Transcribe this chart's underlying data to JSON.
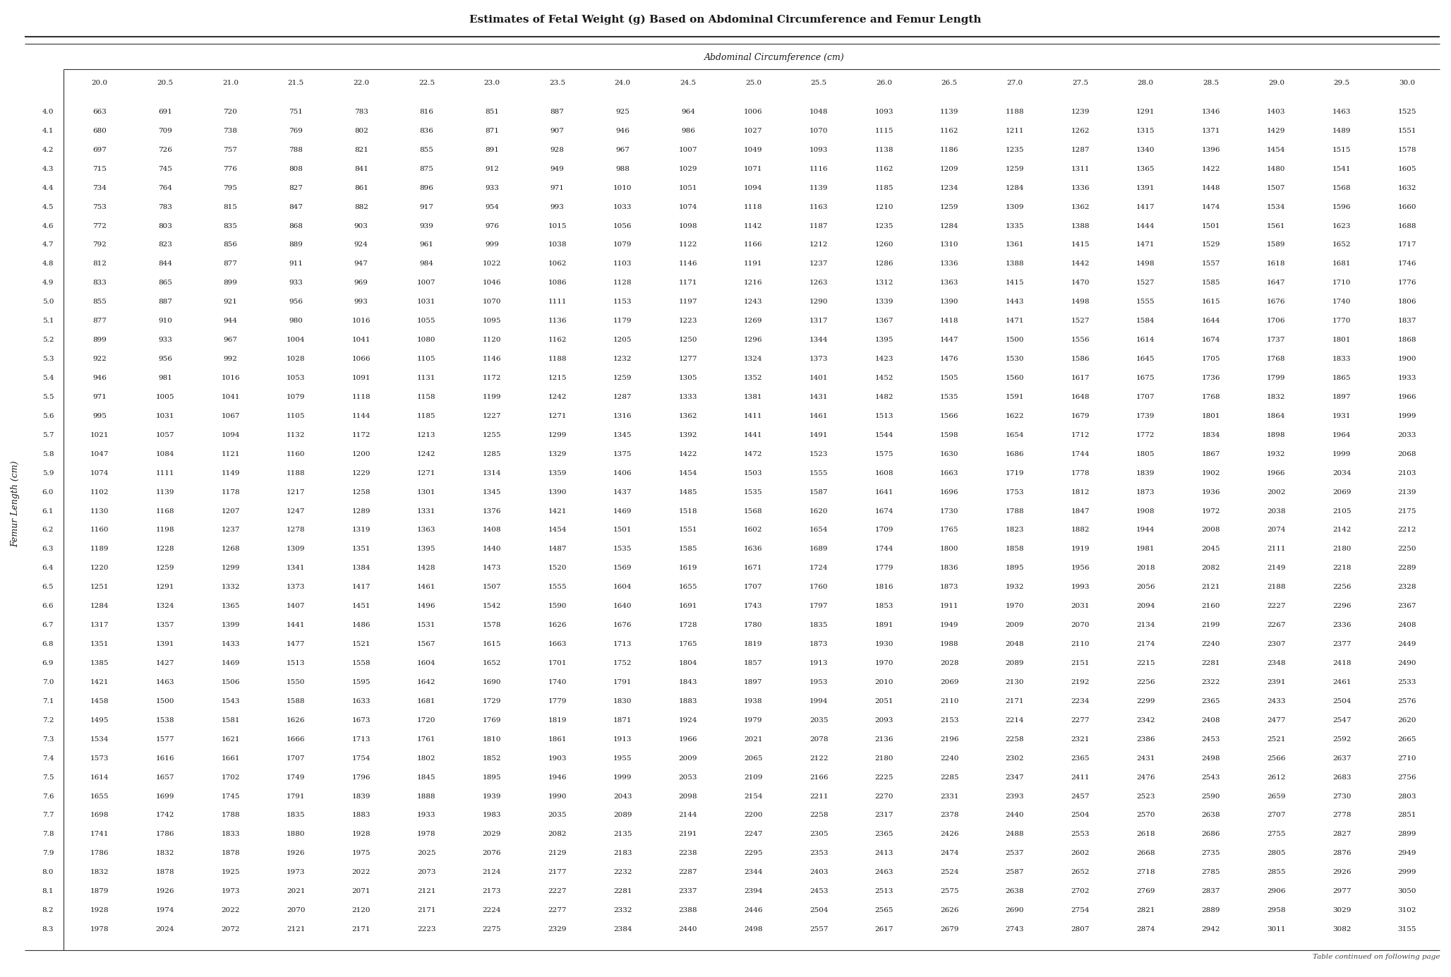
{
  "title": "Estimates of Fetal Weight (g) Based on Abdominal Circumference and Femur Length",
  "col_header_label": "Abdominal Circumference (cm)",
  "row_header_label": "Femur Length (cm)",
  "footer": "Table continued on following page",
  "ac_cols": [
    "20.0",
    "20.5",
    "21.0",
    "21.5",
    "22.0",
    "22.5",
    "23.0",
    "23.5",
    "24.0",
    "24.5",
    "25.0",
    "25.5",
    "26.0",
    "26.5",
    "27.0",
    "27.5",
    "28.0",
    "28.5",
    "29.0",
    "29.5",
    "30.0"
  ],
  "fl_rows": [
    "4.0",
    "4.1",
    "4.2",
    "4.3",
    "4.4",
    "4.5",
    "4.6",
    "4.7",
    "4.8",
    "4.9",
    "5.0",
    "5.1",
    "5.2",
    "5.3",
    "5.4",
    "5.5",
    "5.6",
    "5.7",
    "5.8",
    "5.9",
    "6.0",
    "6.1",
    "6.2",
    "6.3",
    "6.4",
    "6.5",
    "6.6",
    "6.7",
    "6.8",
    "6.9",
    "7.0",
    "7.1",
    "7.2",
    "7.3",
    "7.4",
    "7.5",
    "7.6",
    "7.7",
    "7.8",
    "7.9",
    "8.0",
    "8.1",
    "8.2",
    "8.3"
  ],
  "table_data": [
    [
      663,
      691,
      720,
      751,
      783,
      816,
      851,
      887,
      925,
      964,
      1006,
      1048,
      1093,
      1139,
      1188,
      1239,
      1291,
      1346,
      1403,
      1463,
      1525
    ],
    [
      680,
      709,
      738,
      769,
      802,
      836,
      871,
      907,
      946,
      986,
      1027,
      1070,
      1115,
      1162,
      1211,
      1262,
      1315,
      1371,
      1429,
      1489,
      1551
    ],
    [
      697,
      726,
      757,
      788,
      821,
      855,
      891,
      928,
      967,
      1007,
      1049,
      1093,
      1138,
      1186,
      1235,
      1287,
      1340,
      1396,
      1454,
      1515,
      1578
    ],
    [
      715,
      745,
      776,
      808,
      841,
      875,
      912,
      949,
      988,
      1029,
      1071,
      1116,
      1162,
      1209,
      1259,
      1311,
      1365,
      1422,
      1480,
      1541,
      1605
    ],
    [
      734,
      764,
      795,
      827,
      861,
      896,
      933,
      971,
      1010,
      1051,
      1094,
      1139,
      1185,
      1234,
      1284,
      1336,
      1391,
      1448,
      1507,
      1568,
      1632
    ],
    [
      753,
      783,
      815,
      847,
      882,
      917,
      954,
      993,
      1033,
      1074,
      1118,
      1163,
      1210,
      1259,
      1309,
      1362,
      1417,
      1474,
      1534,
      1596,
      1660
    ],
    [
      772,
      803,
      835,
      868,
      903,
      939,
      976,
      1015,
      1056,
      1098,
      1142,
      1187,
      1235,
      1284,
      1335,
      1388,
      1444,
      1501,
      1561,
      1623,
      1688
    ],
    [
      792,
      823,
      856,
      889,
      924,
      961,
      999,
      1038,
      1079,
      1122,
      1166,
      1212,
      1260,
      1310,
      1361,
      1415,
      1471,
      1529,
      1589,
      1652,
      1717
    ],
    [
      812,
      844,
      877,
      911,
      947,
      984,
      1022,
      1062,
      1103,
      1146,
      1191,
      1237,
      1286,
      1336,
      1388,
      1442,
      1498,
      1557,
      1618,
      1681,
      1746
    ],
    [
      833,
      865,
      899,
      933,
      969,
      1007,
      1046,
      1086,
      1128,
      1171,
      1216,
      1263,
      1312,
      1363,
      1415,
      1470,
      1527,
      1585,
      1647,
      1710,
      1776
    ],
    [
      855,
      887,
      921,
      956,
      993,
      1031,
      1070,
      1111,
      1153,
      1197,
      1243,
      1290,
      1339,
      1390,
      1443,
      1498,
      1555,
      1615,
      1676,
      1740,
      1806
    ],
    [
      877,
      910,
      944,
      980,
      1016,
      1055,
      1095,
      1136,
      1179,
      1223,
      1269,
      1317,
      1367,
      1418,
      1471,
      1527,
      1584,
      1644,
      1706,
      1770,
      1837
    ],
    [
      899,
      933,
      967,
      1004,
      1041,
      1080,
      1120,
      1162,
      1205,
      1250,
      1296,
      1344,
      1395,
      1447,
      1500,
      1556,
      1614,
      1674,
      1737,
      1801,
      1868
    ],
    [
      922,
      956,
      992,
      1028,
      1066,
      1105,
      1146,
      1188,
      1232,
      1277,
      1324,
      1373,
      1423,
      1476,
      1530,
      1586,
      1645,
      1705,
      1768,
      1833,
      1900
    ],
    [
      946,
      981,
      1016,
      1053,
      1091,
      1131,
      1172,
      1215,
      1259,
      1305,
      1352,
      1401,
      1452,
      1505,
      1560,
      1617,
      1675,
      1736,
      1799,
      1865,
      1933
    ],
    [
      971,
      1005,
      1041,
      1079,
      1118,
      1158,
      1199,
      1242,
      1287,
      1333,
      1381,
      1431,
      1482,
      1535,
      1591,
      1648,
      1707,
      1768,
      1832,
      1897,
      1966
    ],
    [
      995,
      1031,
      1067,
      1105,
      1144,
      1185,
      1227,
      1271,
      1316,
      1362,
      1411,
      1461,
      1513,
      1566,
      1622,
      1679,
      1739,
      1801,
      1864,
      1931,
      1999
    ],
    [
      1021,
      1057,
      1094,
      1132,
      1172,
      1213,
      1255,
      1299,
      1345,
      1392,
      1441,
      1491,
      1544,
      1598,
      1654,
      1712,
      1772,
      1834,
      1898,
      1964,
      2033
    ],
    [
      1047,
      1084,
      1121,
      1160,
      1200,
      1242,
      1285,
      1329,
      1375,
      1422,
      1472,
      1523,
      1575,
      1630,
      1686,
      1744,
      1805,
      1867,
      1932,
      1999,
      2068
    ],
    [
      1074,
      1111,
      1149,
      1188,
      1229,
      1271,
      1314,
      1359,
      1406,
      1454,
      1503,
      1555,
      1608,
      1663,
      1719,
      1778,
      1839,
      1902,
      1966,
      2034,
      2103
    ],
    [
      1102,
      1139,
      1178,
      1217,
      1258,
      1301,
      1345,
      1390,
      1437,
      1485,
      1535,
      1587,
      1641,
      1696,
      1753,
      1812,
      1873,
      1936,
      2002,
      2069,
      2139
    ],
    [
      1130,
      1168,
      1207,
      1247,
      1289,
      1331,
      1376,
      1421,
      1469,
      1518,
      1568,
      1620,
      1674,
      1730,
      1788,
      1847,
      1908,
      1972,
      2038,
      2105,
      2175
    ],
    [
      1160,
      1198,
      1237,
      1278,
      1319,
      1363,
      1408,
      1454,
      1501,
      1551,
      1602,
      1654,
      1709,
      1765,
      1823,
      1882,
      1944,
      2008,
      2074,
      2142,
      2212
    ],
    [
      1189,
      1228,
      1268,
      1309,
      1351,
      1395,
      1440,
      1487,
      1535,
      1585,
      1636,
      1689,
      1744,
      1800,
      1858,
      1919,
      1981,
      2045,
      2111,
      2180,
      2250
    ],
    [
      1220,
      1259,
      1299,
      1341,
      1384,
      1428,
      1473,
      1520,
      1569,
      1619,
      1671,
      1724,
      1779,
      1836,
      1895,
      1956,
      2018,
      2082,
      2149,
      2218,
      2289
    ],
    [
      1251,
      1291,
      1332,
      1373,
      1417,
      1461,
      1507,
      1555,
      1604,
      1655,
      1707,
      1760,
      1816,
      1873,
      1932,
      1993,
      2056,
      2121,
      2188,
      2256,
      2328
    ],
    [
      1284,
      1324,
      1365,
      1407,
      1451,
      1496,
      1542,
      1590,
      1640,
      1691,
      1743,
      1797,
      1853,
      1911,
      1970,
      2031,
      2094,
      2160,
      2227,
      2296,
      2367
    ],
    [
      1317,
      1357,
      1399,
      1441,
      1486,
      1531,
      1578,
      1626,
      1676,
      1728,
      1780,
      1835,
      1891,
      1949,
      2009,
      2070,
      2134,
      2199,
      2267,
      2336,
      2408
    ],
    [
      1351,
      1391,
      1433,
      1477,
      1521,
      1567,
      1615,
      1663,
      1713,
      1765,
      1819,
      1873,
      1930,
      1988,
      2048,
      2110,
      2174,
      2240,
      2307,
      2377,
      2449
    ],
    [
      1385,
      1427,
      1469,
      1513,
      1558,
      1604,
      1652,
      1701,
      1752,
      1804,
      1857,
      1913,
      1970,
      2028,
      2089,
      2151,
      2215,
      2281,
      2348,
      2418,
      2490
    ],
    [
      1421,
      1463,
      1506,
      1550,
      1595,
      1642,
      1690,
      1740,
      1791,
      1843,
      1897,
      1953,
      2010,
      2069,
      2130,
      2192,
      2256,
      2322,
      2391,
      2461,
      2533
    ],
    [
      1458,
      1500,
      1543,
      1588,
      1633,
      1681,
      1729,
      1779,
      1830,
      1883,
      1938,
      1994,
      2051,
      2110,
      2171,
      2234,
      2299,
      2365,
      2433,
      2504,
      2576
    ],
    [
      1495,
      1538,
      1581,
      1626,
      1673,
      1720,
      1769,
      1819,
      1871,
      1924,
      1979,
      2035,
      2093,
      2153,
      2214,
      2277,
      2342,
      2408,
      2477,
      2547,
      2620
    ],
    [
      1534,
      1577,
      1621,
      1666,
      1713,
      1761,
      1810,
      1861,
      1913,
      1966,
      2021,
      2078,
      2136,
      2196,
      2258,
      2321,
      2386,
      2453,
      2521,
      2592,
      2665
    ],
    [
      1573,
      1616,
      1661,
      1707,
      1754,
      1802,
      1852,
      1903,
      1955,
      2009,
      2065,
      2122,
      2180,
      2240,
      2302,
      2365,
      2431,
      2498,
      2566,
      2637,
      2710
    ],
    [
      1614,
      1657,
      1702,
      1749,
      1796,
      1845,
      1895,
      1946,
      1999,
      2053,
      2109,
      2166,
      2225,
      2285,
      2347,
      2411,
      2476,
      2543,
      2612,
      2683,
      2756
    ],
    [
      1655,
      1699,
      1745,
      1791,
      1839,
      1888,
      1939,
      1990,
      2043,
      2098,
      2154,
      2211,
      2270,
      2331,
      2393,
      2457,
      2523,
      2590,
      2659,
      2730,
      2803
    ],
    [
      1698,
      1742,
      1788,
      1835,
      1883,
      1933,
      1983,
      2035,
      2089,
      2144,
      2200,
      2258,
      2317,
      2378,
      2440,
      2504,
      2570,
      2638,
      2707,
      2778,
      2851
    ],
    [
      1741,
      1786,
      1833,
      1880,
      1928,
      1978,
      2029,
      2082,
      2135,
      2191,
      2247,
      2305,
      2365,
      2426,
      2488,
      2553,
      2618,
      2686,
      2755,
      2827,
      2899
    ],
    [
      1786,
      1832,
      1878,
      1926,
      1975,
      2025,
      2076,
      2129,
      2183,
      2238,
      2295,
      2353,
      2413,
      2474,
      2537,
      2602,
      2668,
      2735,
      2805,
      2876,
      2949
    ],
    [
      1832,
      1878,
      1925,
      1973,
      2022,
      2073,
      2124,
      2177,
      2232,
      2287,
      2344,
      2403,
      2463,
      2524,
      2587,
      2652,
      2718,
      2785,
      2855,
      2926,
      2999
    ],
    [
      1879,
      1926,
      1973,
      2021,
      2071,
      2121,
      2173,
      2227,
      2281,
      2337,
      2394,
      2453,
      2513,
      2575,
      2638,
      2702,
      2769,
      2837,
      2906,
      2977,
      3050
    ],
    [
      1928,
      1974,
      2022,
      2070,
      2120,
      2171,
      2224,
      2277,
      2332,
      2388,
      2446,
      2504,
      2565,
      2626,
      2690,
      2754,
      2821,
      2889,
      2958,
      3029,
      3102
    ],
    [
      1978,
      2024,
      2072,
      2121,
      2171,
      2223,
      2275,
      2329,
      2384,
      2440,
      2498,
      2557,
      2617,
      2679,
      2743,
      2807,
      2874,
      2942,
      3011,
      3082,
      3155
    ]
  ],
  "title_fontsize": 11,
  "header_fontsize": 9,
  "cell_fontsize": 7.5,
  "fl_label_fontsize": 9,
  "footer_fontsize": 7.5
}
